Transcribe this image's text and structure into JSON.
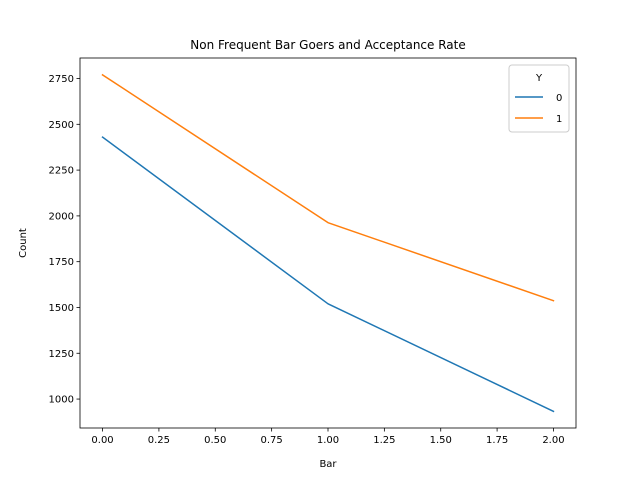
{
  "chart_data": {
    "type": "line",
    "title": "Non Frequent Bar Goers and Acceptance Rate",
    "xlabel": "Bar",
    "ylabel": "Count",
    "x": [
      0,
      1,
      2
    ],
    "series": [
      {
        "name": "0",
        "color": "#1f77b4",
        "values": [
          2430,
          1520,
          933
        ]
      },
      {
        "name": "1",
        "color": "#ff7f0e",
        "values": [
          2770,
          1963,
          1537
        ]
      }
    ],
    "xlim": [
      -0.1,
      2.1
    ],
    "ylim": [
      842,
      2862
    ],
    "xticks": [
      0.0,
      0.25,
      0.5,
      0.75,
      1.0,
      1.25,
      1.5,
      1.75,
      2.0
    ],
    "xtick_labels": [
      "0.00",
      "0.25",
      "0.50",
      "0.75",
      "1.00",
      "1.25",
      "1.50",
      "1.75",
      "2.00"
    ],
    "yticks": [
      1000,
      1250,
      1500,
      1750,
      2000,
      2250,
      2500,
      2750
    ],
    "ytick_labels": [
      "1000",
      "1250",
      "1500",
      "1750",
      "2000",
      "2250",
      "2500",
      "2750"
    ],
    "legend": {
      "title": "Y",
      "position": "top-right"
    },
    "grid": false
  }
}
